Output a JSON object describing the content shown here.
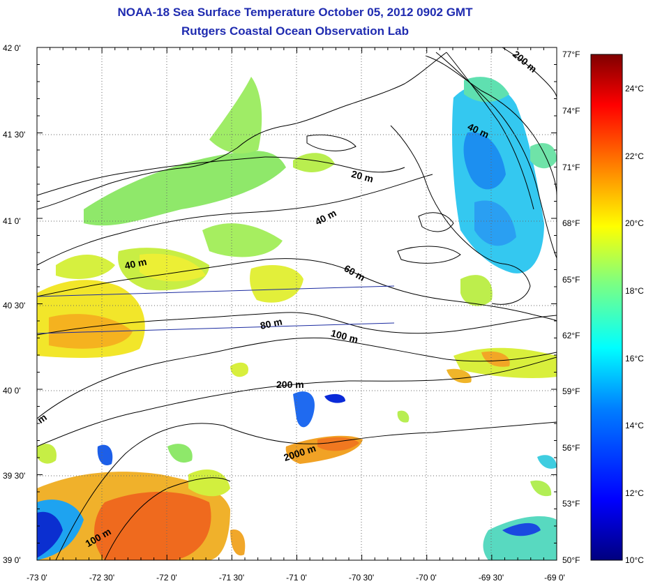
{
  "header": {
    "title": "NOAA-18 Sea Surface Temperature October 05, 2012 0902 GMT",
    "subtitle": "Rutgers Coastal Ocean Observation Lab"
  },
  "map": {
    "lon_labels": [
      "-73 0'",
      "-72 30'",
      "-72 0'",
      "-71 30'",
      "-71 0'",
      "-70 30'",
      "-70 0'",
      "-69 30'",
      "-69 0'"
    ],
    "lat_labels": [
      "42 0'",
      "41 30'",
      "41 0'",
      "40 30'",
      "40 0'",
      "39 30'",
      "39 0'"
    ],
    "lon_range": [
      -73.0,
      -69.0
    ],
    "lat_range": [
      39.0,
      42.0
    ],
    "grid": true,
    "fahrenheit_labels": [
      "77°F",
      "74°F",
      "71°F",
      "68°F",
      "65°F",
      "62°F",
      "59°F",
      "56°F",
      "53°F",
      "50°F"
    ],
    "contour_labels": [
      "200 m",
      "40 m",
      "20 m",
      "40 m",
      "40 m",
      "60 m",
      "80 m",
      "100 m",
      "200 m",
      "2000 m",
      "m",
      "100 m"
    ]
  },
  "colorbar": {
    "celsius_labels": [
      "24°C",
      "22°C",
      "20°C",
      "18°C",
      "16°C",
      "14°C",
      "12°C",
      "10°C"
    ],
    "range_c": [
      10,
      25
    ],
    "colors": [
      "#00007f",
      "#0000ff",
      "#007fff",
      "#00ffff",
      "#7fff7f",
      "#ffff00",
      "#ff7f00",
      "#ff0000",
      "#7f0000"
    ]
  }
}
